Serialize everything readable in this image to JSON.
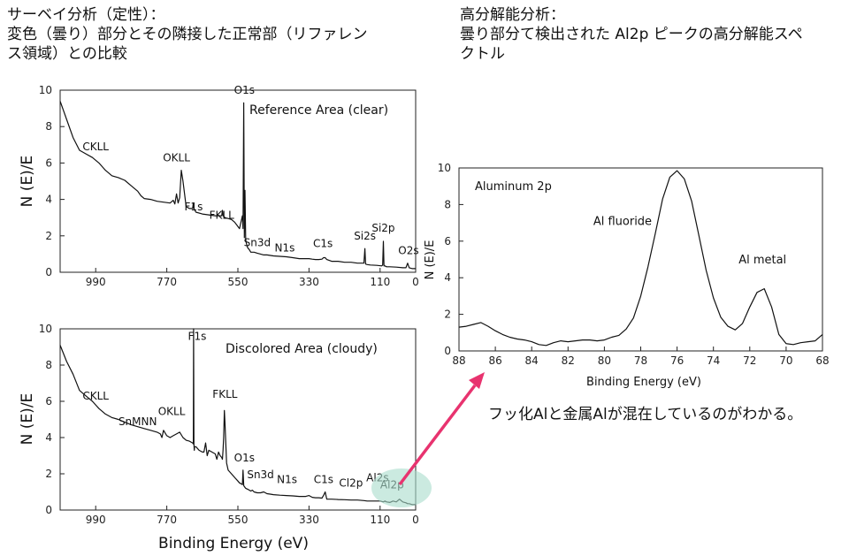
{
  "headings": {
    "left": "サーベイ分析（定性）：\n変色（曇り）部分とその隣接した正常部（リファレン\nス領域）との比較",
    "right": "高分解能分析：\n曇り部分て検出された Al2p ピークの高分解能スペ\nクトル"
  },
  "conclusion": "フッ化Alと金属Alが混在しているのがわかる。",
  "colors": {
    "arrow": "#e8336f",
    "highlight": "#a8dccb"
  },
  "chart_data": [
    {
      "type": "line",
      "id": "reference",
      "title": "Reference Area (clear)",
      "xlabel": "",
      "ylabel": "N (E)/E",
      "xlim": [
        1100,
        0
      ],
      "ylim": [
        0,
        10
      ],
      "xticks": [
        990,
        770,
        550,
        330,
        110,
        0
      ],
      "yticks": [
        0,
        2,
        4,
        6,
        8,
        10
      ],
      "x": [
        1100,
        1080,
        1060,
        1040,
        1020,
        1000,
        980,
        960,
        940,
        920,
        900,
        880,
        860,
        850,
        840,
        820,
        800,
        780,
        760,
        750,
        745,
        740,
        735,
        730,
        725,
        720,
        710,
        700,
        690,
        688,
        686,
        680,
        660,
        640,
        620,
        600,
        598,
        596,
        590,
        570,
        560,
        545,
        540,
        536,
        534,
        532,
        530,
        528,
        526,
        524,
        520,
        515,
        510,
        500,
        490,
        480,
        470,
        460,
        440,
        400,
        380,
        360,
        340,
        330,
        320,
        310,
        300,
        290,
        285,
        280,
        275,
        260,
        240,
        220,
        200,
        180,
        165,
        160,
        157,
        155,
        150,
        140,
        120,
        105,
        102,
        100,
        98,
        95,
        90,
        80,
        60,
        40,
        30,
        25,
        20,
        10,
        0
      ],
      "y": [
        9.4,
        8.4,
        7.4,
        6.7,
        6.5,
        6.3,
        6.0,
        5.6,
        5.3,
        5.2,
        5.05,
        4.75,
        4.45,
        4.2,
        4.05,
        4.0,
        3.9,
        3.85,
        3.8,
        3.95,
        3.75,
        4.3,
        3.8,
        4.1,
        5.6,
        5.0,
        3.6,
        3.5,
        3.5,
        3.8,
        3.5,
        3.3,
        3.2,
        3.15,
        3.1,
        3.1,
        3.4,
        3.1,
        3.0,
        2.9,
        2.75,
        2.4,
        2.8,
        3.1,
        2.4,
        9.3,
        1.9,
        4.5,
        1.8,
        1.6,
        1.35,
        1.25,
        1.1,
        1.1,
        1.05,
        1.0,
        0.95,
        0.95,
        0.9,
        0.85,
        0.8,
        0.75,
        0.75,
        0.75,
        0.72,
        0.7,
        0.7,
        0.72,
        0.8,
        0.8,
        0.7,
        0.6,
        0.6,
        0.55,
        0.55,
        0.5,
        0.5,
        0.5,
        1.3,
        0.45,
        0.42,
        0.4,
        0.38,
        0.35,
        0.4,
        1.7,
        0.35,
        0.35,
        0.3,
        0.3,
        0.28,
        0.25,
        0.25,
        0.5,
        0.25,
        0.2,
        0.2
      ],
      "peak_labels": [
        {
          "label": "CKLL",
          "x": 990,
          "y": 6.5
        },
        {
          "label": "OKLL",
          "x": 740,
          "y": 5.9
        },
        {
          "label": "O1s",
          "x": 530,
          "y": 9.6
        },
        {
          "label": "F1s",
          "x": 687,
          "y": 3.2
        },
        {
          "label": "FKLL",
          "x": 600,
          "y": 2.75
        },
        {
          "label": "Sn3d",
          "x": 490,
          "y": 1.25
        },
        {
          "label": "N1s",
          "x": 405,
          "y": 0.95
        },
        {
          "label": "C1s",
          "x": 287,
          "y": 1.2
        },
        {
          "label": "Si2s",
          "x": 157,
          "y": 1.6
        },
        {
          "label": "Si2p",
          "x": 100,
          "y": 2.05
        },
        {
          "label": "O2s",
          "x": 22,
          "y": 0.8
        }
      ]
    },
    {
      "type": "line",
      "id": "discolored",
      "title": "Discolored Area (cloudy)",
      "xlabel": "Binding Energy (eV)",
      "ylabel": "N (E)/E",
      "xlim": [
        1100,
        0
      ],
      "ylim": [
        0,
        10
      ],
      "xticks": [
        990,
        770,
        550,
        330,
        110,
        0
      ],
      "yticks": [
        0,
        2,
        4,
        6,
        8,
        10
      ],
      "x": [
        1100,
        1080,
        1060,
        1040,
        1020,
        1000,
        990,
        980,
        960,
        940,
        920,
        900,
        880,
        860,
        840,
        820,
        800,
        790,
        785,
        780,
        770,
        760,
        750,
        740,
        730,
        720,
        710,
        700,
        690,
        688,
        687,
        686,
        685,
        684,
        680,
        670,
        660,
        655,
        650,
        645,
        640,
        620,
        615,
        610,
        605,
        600,
        598,
        596,
        594,
        592,
        590,
        585,
        580,
        570,
        560,
        550,
        545,
        540,
        536,
        534,
        532,
        530,
        528,
        526,
        520,
        510,
        505,
        500,
        490,
        480,
        470,
        460,
        450,
        440,
        420,
        400,
        380,
        360,
        340,
        330,
        320,
        310,
        300,
        290,
        285,
        280,
        275,
        260,
        240,
        220,
        200,
        180,
        160,
        150,
        140,
        130,
        120,
        110,
        100,
        95,
        90,
        80,
        70,
        60,
        50,
        40,
        30,
        25,
        20,
        10,
        0
      ],
      "y": [
        9.1,
        8.2,
        7.5,
        6.6,
        6.3,
        6.0,
        5.8,
        5.6,
        5.3,
        5.1,
        5.0,
        4.85,
        4.7,
        4.6,
        4.5,
        4.4,
        4.3,
        4.2,
        4.0,
        4.4,
        4.1,
        4.0,
        4.1,
        4.2,
        4.3,
        4.0,
        3.85,
        3.8,
        3.7,
        3.65,
        10.0,
        3.6,
        3.3,
        3.5,
        3.5,
        3.3,
        3.2,
        3.2,
        3.7,
        3.0,
        3.3,
        3.1,
        2.8,
        3.2,
        3.0,
        2.9,
        2.8,
        3.3,
        4.0,
        5.5,
        4.8,
        2.6,
        2.2,
        2.0,
        1.8,
        1.6,
        1.5,
        1.45,
        1.4,
        2.2,
        1.35,
        1.3,
        1.25,
        1.2,
        1.15,
        1.05,
        1.1,
        1.0,
        0.95,
        0.95,
        1.0,
        0.9,
        0.88,
        0.85,
        0.82,
        0.8,
        0.78,
        0.75,
        0.75,
        0.8,
        0.7,
        0.68,
        0.68,
        0.66,
        0.8,
        1.0,
        0.6,
        0.6,
        0.58,
        0.57,
        0.55,
        0.55,
        0.52,
        0.5,
        0.5,
        0.5,
        0.5,
        0.5,
        0.45,
        0.5,
        0.45,
        0.42,
        0.5,
        0.45,
        0.6,
        0.45,
        0.4,
        0.35,
        0.35,
        0.3,
        0.3
      ],
      "peak_labels": [
        {
          "label": "CKLL",
          "x": 990,
          "y": 5.9
        },
        {
          "label": "SnMNN",
          "x": 860,
          "y": 4.5
        },
        {
          "label": "OKLL",
          "x": 755,
          "y": 5.05
        },
        {
          "label": "F1s",
          "x": 676,
          "y": 9.2
        },
        {
          "label": "FKLL",
          "x": 590,
          "y": 6.0
        },
        {
          "label": "O1s",
          "x": 530,
          "y": 2.5
        },
        {
          "label": "Sn3d",
          "x": 480,
          "y": 1.55
        },
        {
          "label": "N1s",
          "x": 398,
          "y": 1.3
        },
        {
          "label": "C1s",
          "x": 285,
          "y": 1.3
        },
        {
          "label": "Cl2p",
          "x": 200,
          "y": 1.1
        },
        {
          "label": "Al2s",
          "x": 118,
          "y": 1.4
        },
        {
          "label": "Al2p",
          "x": 73,
          "y": 1.0
        }
      ]
    },
    {
      "type": "line",
      "id": "al2p",
      "title": "Aluminum 2p",
      "xlabel": "Binding Energy (eV)",
      "ylabel": "N (E)/E",
      "xlim": [
        88,
        68
      ],
      "ylim": [
        0,
        10
      ],
      "xticks": [
        88,
        86,
        84,
        82,
        80,
        78,
        76,
        74,
        72,
        70,
        68
      ],
      "yticks": [
        0,
        2,
        4,
        6,
        8,
        10
      ],
      "x": [
        88,
        87.6,
        87.2,
        86.8,
        86.4,
        86.0,
        85.6,
        85.2,
        84.8,
        84.4,
        84.0,
        83.6,
        83.2,
        82.8,
        82.4,
        82.0,
        81.6,
        81.2,
        80.8,
        80.4,
        80.0,
        79.6,
        79.2,
        78.8,
        78.4,
        78.0,
        77.6,
        77.2,
        76.8,
        76.4,
        76.0,
        75.6,
        75.2,
        74.8,
        74.4,
        74.0,
        73.6,
        73.2,
        72.8,
        72.4,
        72.0,
        71.6,
        71.2,
        70.8,
        70.4,
        70.0,
        69.6,
        69.2,
        68.8,
        68.4,
        68.0
      ],
      "y": [
        1.3,
        1.35,
        1.45,
        1.55,
        1.35,
        1.1,
        0.9,
        0.75,
        0.65,
        0.6,
        0.5,
        0.35,
        0.3,
        0.45,
        0.55,
        0.5,
        0.55,
        0.6,
        0.6,
        0.55,
        0.6,
        0.75,
        0.85,
        1.2,
        1.8,
        3.0,
        4.6,
        6.4,
        8.3,
        9.5,
        9.85,
        9.4,
        8.2,
        6.3,
        4.4,
        2.9,
        1.85,
        1.35,
        1.15,
        1.5,
        2.4,
        3.2,
        3.4,
        2.4,
        0.9,
        0.4,
        0.35,
        0.45,
        0.5,
        0.55,
        0.9
      ],
      "peak_labels": [
        {
          "label": "Al fluoride",
          "x": 79.0,
          "y": 6.7
        },
        {
          "label": "Al metal",
          "x": 71.3,
          "y": 4.6
        }
      ]
    }
  ]
}
